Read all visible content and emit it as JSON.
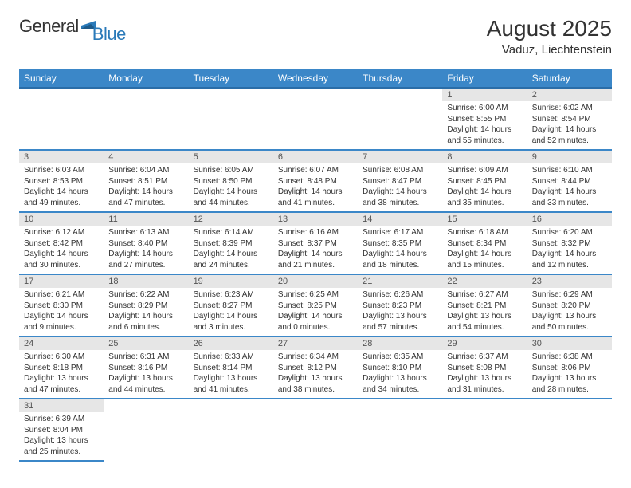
{
  "logo": {
    "general": "General",
    "blue": "Blue"
  },
  "title": "August 2025",
  "location": "Vaduz, Liechtenstein",
  "colors": {
    "header_bg": "#3b87c8",
    "header_border": "#2a6da8",
    "cell_border": "#3b87c8",
    "daynum_bg": "#e6e6e6",
    "logo_blue": "#2a7ab9"
  },
  "weekdays": [
    "Sunday",
    "Monday",
    "Tuesday",
    "Wednesday",
    "Thursday",
    "Friday",
    "Saturday"
  ],
  "weeks": [
    [
      null,
      null,
      null,
      null,
      null,
      {
        "n": "1",
        "sr": "Sunrise: 6:00 AM",
        "ss": "Sunset: 8:55 PM",
        "dl": "Daylight: 14 hours and 55 minutes."
      },
      {
        "n": "2",
        "sr": "Sunrise: 6:02 AM",
        "ss": "Sunset: 8:54 PM",
        "dl": "Daylight: 14 hours and 52 minutes."
      }
    ],
    [
      {
        "n": "3",
        "sr": "Sunrise: 6:03 AM",
        "ss": "Sunset: 8:53 PM",
        "dl": "Daylight: 14 hours and 49 minutes."
      },
      {
        "n": "4",
        "sr": "Sunrise: 6:04 AM",
        "ss": "Sunset: 8:51 PM",
        "dl": "Daylight: 14 hours and 47 minutes."
      },
      {
        "n": "5",
        "sr": "Sunrise: 6:05 AM",
        "ss": "Sunset: 8:50 PM",
        "dl": "Daylight: 14 hours and 44 minutes."
      },
      {
        "n": "6",
        "sr": "Sunrise: 6:07 AM",
        "ss": "Sunset: 8:48 PM",
        "dl": "Daylight: 14 hours and 41 minutes."
      },
      {
        "n": "7",
        "sr": "Sunrise: 6:08 AM",
        "ss": "Sunset: 8:47 PM",
        "dl": "Daylight: 14 hours and 38 minutes."
      },
      {
        "n": "8",
        "sr": "Sunrise: 6:09 AM",
        "ss": "Sunset: 8:45 PM",
        "dl": "Daylight: 14 hours and 35 minutes."
      },
      {
        "n": "9",
        "sr": "Sunrise: 6:10 AM",
        "ss": "Sunset: 8:44 PM",
        "dl": "Daylight: 14 hours and 33 minutes."
      }
    ],
    [
      {
        "n": "10",
        "sr": "Sunrise: 6:12 AM",
        "ss": "Sunset: 8:42 PM",
        "dl": "Daylight: 14 hours and 30 minutes."
      },
      {
        "n": "11",
        "sr": "Sunrise: 6:13 AM",
        "ss": "Sunset: 8:40 PM",
        "dl": "Daylight: 14 hours and 27 minutes."
      },
      {
        "n": "12",
        "sr": "Sunrise: 6:14 AM",
        "ss": "Sunset: 8:39 PM",
        "dl": "Daylight: 14 hours and 24 minutes."
      },
      {
        "n": "13",
        "sr": "Sunrise: 6:16 AM",
        "ss": "Sunset: 8:37 PM",
        "dl": "Daylight: 14 hours and 21 minutes."
      },
      {
        "n": "14",
        "sr": "Sunrise: 6:17 AM",
        "ss": "Sunset: 8:35 PM",
        "dl": "Daylight: 14 hours and 18 minutes."
      },
      {
        "n": "15",
        "sr": "Sunrise: 6:18 AM",
        "ss": "Sunset: 8:34 PM",
        "dl": "Daylight: 14 hours and 15 minutes."
      },
      {
        "n": "16",
        "sr": "Sunrise: 6:20 AM",
        "ss": "Sunset: 8:32 PM",
        "dl": "Daylight: 14 hours and 12 minutes."
      }
    ],
    [
      {
        "n": "17",
        "sr": "Sunrise: 6:21 AM",
        "ss": "Sunset: 8:30 PM",
        "dl": "Daylight: 14 hours and 9 minutes."
      },
      {
        "n": "18",
        "sr": "Sunrise: 6:22 AM",
        "ss": "Sunset: 8:29 PM",
        "dl": "Daylight: 14 hours and 6 minutes."
      },
      {
        "n": "19",
        "sr": "Sunrise: 6:23 AM",
        "ss": "Sunset: 8:27 PM",
        "dl": "Daylight: 14 hours and 3 minutes."
      },
      {
        "n": "20",
        "sr": "Sunrise: 6:25 AM",
        "ss": "Sunset: 8:25 PM",
        "dl": "Daylight: 14 hours and 0 minutes."
      },
      {
        "n": "21",
        "sr": "Sunrise: 6:26 AM",
        "ss": "Sunset: 8:23 PM",
        "dl": "Daylight: 13 hours and 57 minutes."
      },
      {
        "n": "22",
        "sr": "Sunrise: 6:27 AM",
        "ss": "Sunset: 8:21 PM",
        "dl": "Daylight: 13 hours and 54 minutes."
      },
      {
        "n": "23",
        "sr": "Sunrise: 6:29 AM",
        "ss": "Sunset: 8:20 PM",
        "dl": "Daylight: 13 hours and 50 minutes."
      }
    ],
    [
      {
        "n": "24",
        "sr": "Sunrise: 6:30 AM",
        "ss": "Sunset: 8:18 PM",
        "dl": "Daylight: 13 hours and 47 minutes."
      },
      {
        "n": "25",
        "sr": "Sunrise: 6:31 AM",
        "ss": "Sunset: 8:16 PM",
        "dl": "Daylight: 13 hours and 44 minutes."
      },
      {
        "n": "26",
        "sr": "Sunrise: 6:33 AM",
        "ss": "Sunset: 8:14 PM",
        "dl": "Daylight: 13 hours and 41 minutes."
      },
      {
        "n": "27",
        "sr": "Sunrise: 6:34 AM",
        "ss": "Sunset: 8:12 PM",
        "dl": "Daylight: 13 hours and 38 minutes."
      },
      {
        "n": "28",
        "sr": "Sunrise: 6:35 AM",
        "ss": "Sunset: 8:10 PM",
        "dl": "Daylight: 13 hours and 34 minutes."
      },
      {
        "n": "29",
        "sr": "Sunrise: 6:37 AM",
        "ss": "Sunset: 8:08 PM",
        "dl": "Daylight: 13 hours and 31 minutes."
      },
      {
        "n": "30",
        "sr": "Sunrise: 6:38 AM",
        "ss": "Sunset: 8:06 PM",
        "dl": "Daylight: 13 hours and 28 minutes."
      }
    ],
    [
      {
        "n": "31",
        "sr": "Sunrise: 6:39 AM",
        "ss": "Sunset: 8:04 PM",
        "dl": "Daylight: 13 hours and 25 minutes."
      },
      null,
      null,
      null,
      null,
      null,
      null
    ]
  ]
}
